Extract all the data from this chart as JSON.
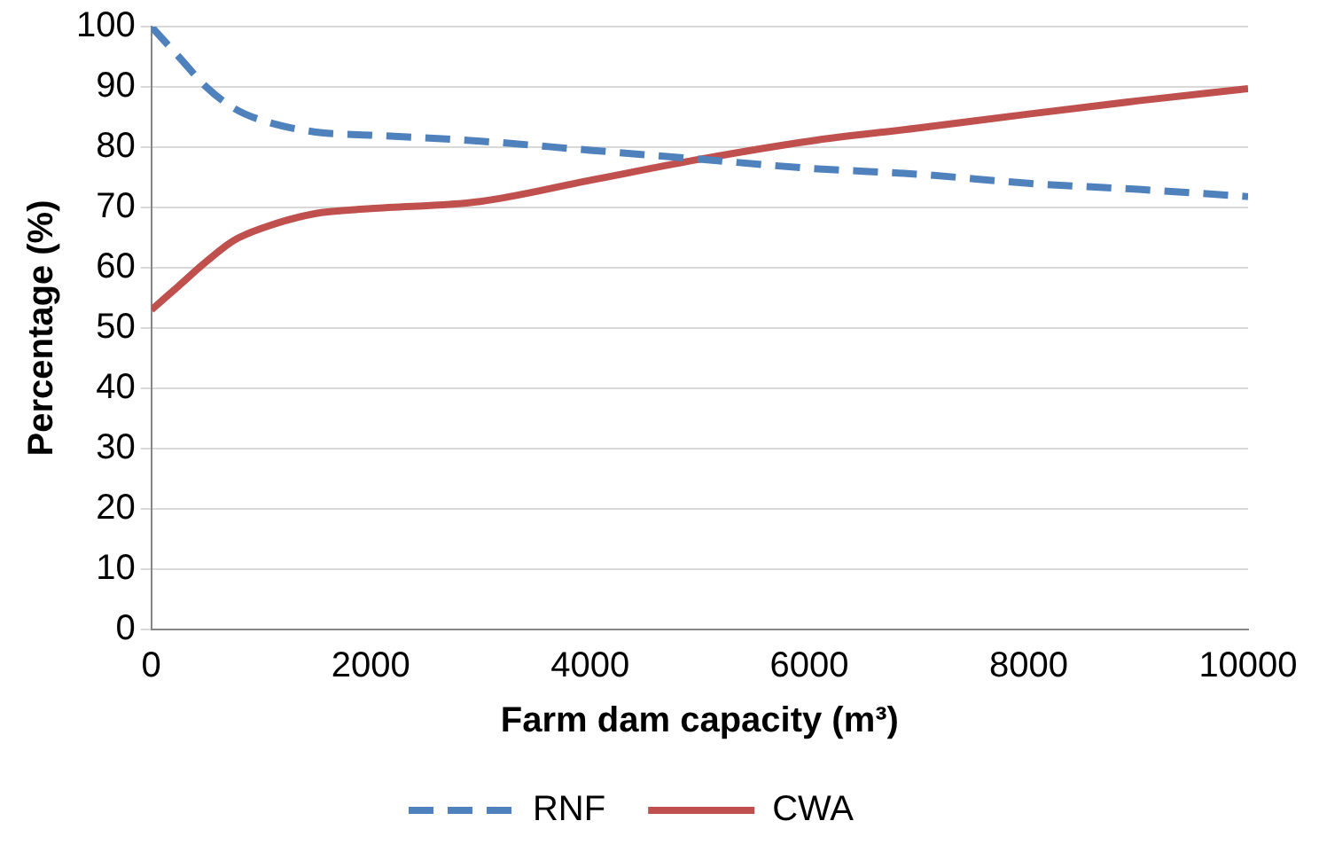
{
  "chart_data": {
    "type": "line",
    "xlabel": "Farm dam capacity (m³)",
    "ylabel": "Percentage (%)",
    "xlim": [
      0,
      10000
    ],
    "xticks": [
      0,
      2000,
      4000,
      6000,
      8000,
      10000
    ],
    "ylim": [
      0,
      100
    ],
    "yticks": [
      0,
      10,
      20,
      30,
      40,
      50,
      60,
      70,
      80,
      90,
      100
    ],
    "grid": "y",
    "legend": "bottom",
    "marker": "none",
    "series": [
      {
        "name": "RNF",
        "color": "#4f81bd",
        "line_style": "dashed",
        "x": [
          0,
          250,
          500,
          750,
          1000,
          1500,
          2000,
          3000,
          4000,
          5000,
          6000,
          7000,
          8000,
          9000,
          10000
        ],
        "values": [
          100,
          95,
          90,
          86.5,
          84.5,
          82.5,
          82,
          81,
          79.5,
          78,
          76.5,
          75.5,
          74,
          73,
          71.8
        ]
      },
      {
        "name": "CWA",
        "color": "#c0504d",
        "line_style": "solid",
        "x": [
          0,
          250,
          500,
          750,
          1000,
          1500,
          2000,
          3000,
          4000,
          5000,
          6000,
          7000,
          8000,
          9000,
          10000
        ],
        "values": [
          53,
          57,
          61,
          64.5,
          66.5,
          69,
          69.8,
          71,
          74.5,
          78,
          81,
          83.2,
          85.5,
          87.7,
          89.7
        ]
      }
    ]
  }
}
